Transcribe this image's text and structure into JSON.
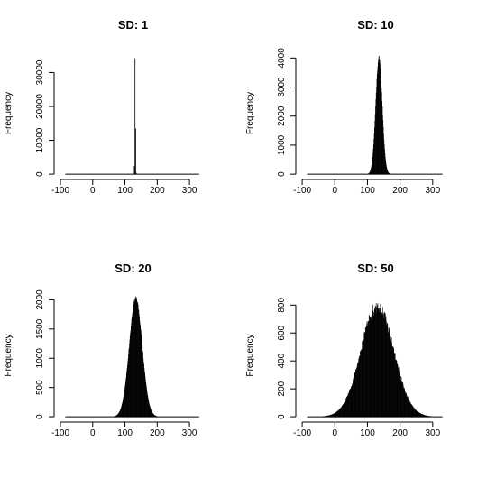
{
  "chart_data": [
    {
      "type": "histogram",
      "title": "SD: 1",
      "ylabel": "Frequency",
      "xlim": [
        -100,
        350
      ],
      "ylim": [
        0,
        36000
      ],
      "x_ticks": [
        -100,
        0,
        100,
        200,
        300
      ],
      "y_ticks": [
        0,
        10000,
        20000,
        30000
      ],
      "distribution": {
        "mean": 135,
        "sd": 1
      },
      "peak_frequency": 34200,
      "bin_width": 2,
      "bins": [
        [
          128,
          2400
        ],
        [
          130,
          34200
        ],
        [
          132,
          13500
        ],
        [
          134,
          400
        ]
      ]
    },
    {
      "type": "histogram",
      "title": "SD: 10",
      "ylabel": "Frequency",
      "xlim": [
        -100,
        350
      ],
      "ylim": [
        0,
        4200
      ],
      "x_ticks": [
        -100,
        0,
        100,
        200,
        300
      ],
      "y_ticks": [
        0,
        1000,
        2000,
        3000,
        4000
      ],
      "distribution": {
        "mean": 135,
        "sd": 10
      },
      "peak_frequency": 4000,
      "bin_width": 1
    },
    {
      "type": "histogram",
      "title": "SD: 20",
      "ylabel": "Frequency",
      "xlim": [
        -100,
        350
      ],
      "ylim": [
        0,
        2100
      ],
      "x_ticks": [
        -100,
        0,
        100,
        200,
        300
      ],
      "y_ticks": [
        0,
        500,
        1000,
        1500,
        2000
      ],
      "distribution": {
        "mean": 133,
        "sd": 20
      },
      "peak_frequency": 2030,
      "bin_width": 1
    },
    {
      "type": "histogram",
      "title": "SD: 50",
      "ylabel": "Frequency",
      "xlim": [
        -100,
        350
      ],
      "ylim": [
        0,
        880
      ],
      "x_ticks": [
        -100,
        0,
        100,
        200,
        300
      ],
      "y_ticks": [
        0,
        200,
        400,
        600,
        800
      ],
      "distribution": {
        "mean": 130,
        "sd": 50
      },
      "peak_frequency": 790,
      "bin_width": 1,
      "noise": 0.06
    }
  ],
  "colors": {
    "bars": "#000000",
    "axes": "#000000",
    "background": "#ffffff"
  }
}
